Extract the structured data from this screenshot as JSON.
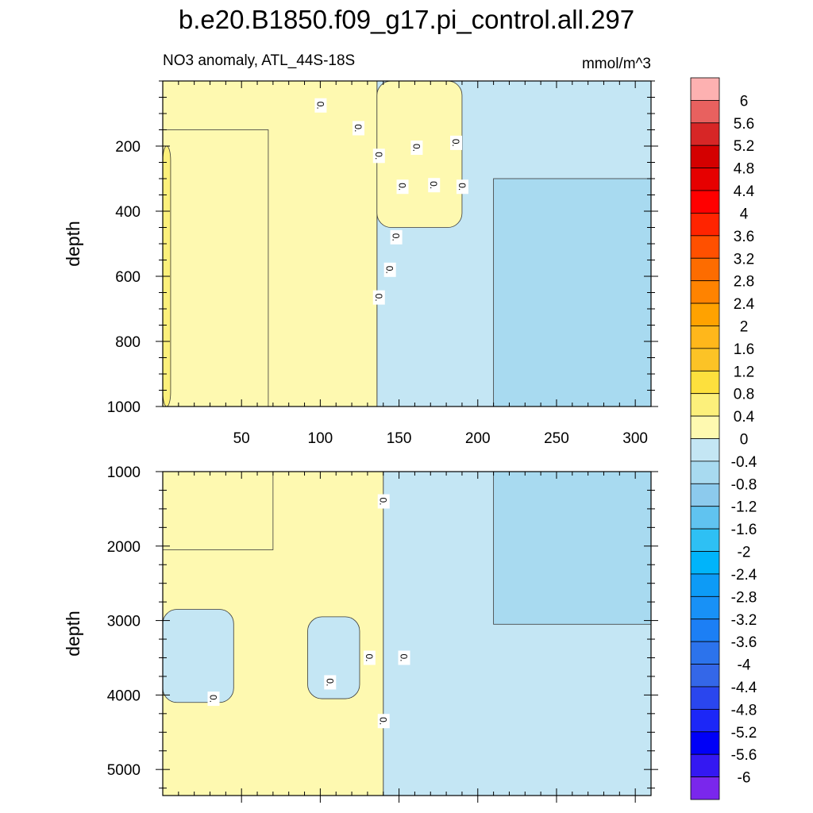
{
  "figure": {
    "title": "b.e20.B1850.f09_g17.pi_control.all.297",
    "subtitle_left": "NO3 anomaly, ATL_44S-18S",
    "subtitle_right": "mmol/m^3"
  },
  "chart_data": [
    {
      "type": "heatmap",
      "panel": "upper",
      "ylabel": "depth",
      "xlabel": "",
      "xlim": [
        0,
        310
      ],
      "ylim": [
        1000,
        0
      ],
      "x_ticks": [
        50,
        100,
        150,
        200,
        250,
        300
      ],
      "y_ticks": [
        200,
        400,
        600,
        800,
        1000
      ],
      "regions": [
        {
          "value": 0.6,
          "x_from": 0,
          "x_to": 5,
          "depth_from": 200,
          "depth_to": 1000
        },
        {
          "value": 0.4,
          "x_from": 0,
          "x_to": 67,
          "depth_from": 150,
          "depth_to": 1000
        },
        {
          "value": 0.2,
          "x_from": 0,
          "x_to": 136,
          "depth_from": 0,
          "depth_to": 1000
        },
        {
          "value": 0.2,
          "x_from": 136,
          "x_to": 190,
          "depth_from": 0,
          "depth_to": 450
        },
        {
          "value": -0.2,
          "x_from": 136,
          "x_to": 310,
          "depth_from": 0,
          "depth_to": 1000
        },
        {
          "value": -0.6,
          "x_from": 210,
          "x_to": 310,
          "depth_from": 300,
          "depth_to": 1000
        }
      ],
      "contour_labels": [
        {
          "text": "0.",
          "x": 100,
          "depth": 75
        },
        {
          "text": "0.",
          "x": 124,
          "depth": 145
        },
        {
          "text": "0.",
          "x": 137,
          "depth": 230
        },
        {
          "text": "0.",
          "x": 161,
          "depth": 205
        },
        {
          "text": "0.",
          "x": 186,
          "depth": 190
        },
        {
          "text": "0.",
          "x": 152,
          "depth": 325
        },
        {
          "text": "0.",
          "x": 172,
          "depth": 320
        },
        {
          "text": "0.",
          "x": 190,
          "depth": 325
        },
        {
          "text": "0.",
          "x": 148,
          "depth": 480
        },
        {
          "text": "0.",
          "x": 144,
          "depth": 580
        },
        {
          "text": "0.",
          "x": 137,
          "depth": 665
        }
      ]
    },
    {
      "type": "heatmap",
      "panel": "lower",
      "ylabel": "depth",
      "xlabel": "",
      "xlim": [
        0,
        310
      ],
      "ylim": [
        5350,
        1000
      ],
      "x_ticks": [
        50,
        100,
        150,
        200,
        250,
        300
      ],
      "y_ticks": [
        1000,
        2000,
        3000,
        4000,
        5000
      ],
      "regions": [
        {
          "value": 0.4,
          "x_from": 0,
          "x_to": 70,
          "depth_from": 1000,
          "depth_to": 2050
        },
        {
          "value": 0.2,
          "x_from": 0,
          "x_to": 140,
          "depth_from": 1000,
          "depth_to": 5350
        },
        {
          "value": -0.2,
          "x_from": 0,
          "x_to": 45,
          "depth_from": 2850,
          "depth_to": 4100
        },
        {
          "value": -0.2,
          "x_from": 92,
          "x_to": 125,
          "depth_from": 2950,
          "depth_to": 4050
        },
        {
          "value": -0.2,
          "x_from": 140,
          "x_to": 310,
          "depth_from": 1000,
          "depth_to": 5350
        },
        {
          "value": -0.6,
          "x_from": 210,
          "x_to": 310,
          "depth_from": 1000,
          "depth_to": 3050
        }
      ],
      "contour_labels": [
        {
          "text": "0.",
          "x": 140,
          "depth": 1400
        },
        {
          "text": "0.",
          "x": 131,
          "depth": 3500
        },
        {
          "text": "0.",
          "x": 153,
          "depth": 3500
        },
        {
          "text": "0.",
          "x": 106,
          "depth": 3830
        },
        {
          "text": "0.",
          "x": 32,
          "depth": 4050
        },
        {
          "text": "0.",
          "x": 140,
          "depth": 4350
        }
      ]
    }
  ],
  "colorbar": {
    "labels": [
      "6",
      "5.6",
      "5.2",
      "4.8",
      "4.4",
      "4",
      "3.6",
      "3.2",
      "2.8",
      "2.4",
      "2",
      "1.6",
      "1.2",
      "0.8",
      "0.4",
      "0",
      "-0.4",
      "-0.8",
      "-1.2",
      "-1.6",
      "-2",
      "-2.4",
      "-2.8",
      "-3.2",
      "-3.6",
      "-4",
      "-4.4",
      "-4.8",
      "-5.2",
      "-5.6",
      "-6"
    ],
    "colors": [
      "#fdb1b1",
      "#e8615f",
      "#d72626",
      "#d40000",
      "#e60000",
      "#ff0000",
      "#ff2400",
      "#ff5000",
      "#fd6c00",
      "#ff8300",
      "#ffa200",
      "#ffb71b",
      "#fcc326",
      "#fde03d",
      "#fcf07b",
      "#fef9b0",
      "#c4e6f4",
      "#a8daf0",
      "#8ccaed",
      "#60c3f0",
      "#2ec0f4",
      "#00b4fa",
      "#0d9bf6",
      "#1891f6",
      "#1c7ff5",
      "#2c73ec",
      "#3467e8",
      "#2a46ee",
      "#1c27f7",
      "#0000f7",
      "#3418f2",
      "#7a27ec"
    ]
  },
  "colors": {
    "contour_line": "#3a3a3a",
    "frame": "#000000"
  }
}
